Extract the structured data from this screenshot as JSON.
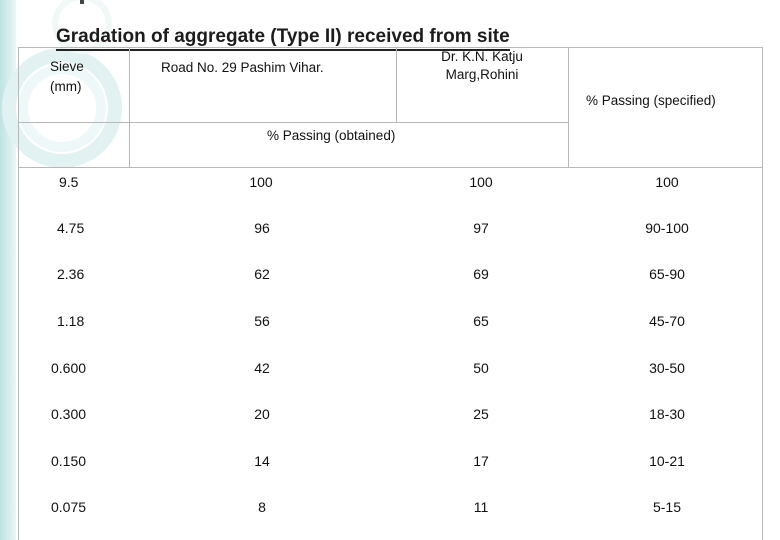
{
  "title": "Gradation of aggregate (Type II) received from site",
  "header": {
    "sieve": "Sieve",
    "mm": "(mm)",
    "road29": "Road No. 29 Pashim Vihar.",
    "katju_line1": "Dr. K.N. Katju",
    "katju_line2": "Marg,Rohini",
    "specified": "% Passing (specified)",
    "obtained": "% Passing (obtained)"
  },
  "rows": [
    {
      "sieve": "9.5",
      "road29": "100",
      "katju": "100",
      "specified": "100"
    },
    {
      "sieve": "4.75",
      "road29": "96",
      "katju": "97",
      "specified": "90-100"
    },
    {
      "sieve": "2.36",
      "road29": "62",
      "katju": "69",
      "specified": "65-90"
    },
    {
      "sieve": "1.18",
      "road29": "56",
      "katju": "65",
      "specified": "45-70"
    },
    {
      "sieve": "0.600",
      "road29": "42",
      "katju": "50",
      "specified": "30-50"
    },
    {
      "sieve": "0.300",
      "road29": "20",
      "katju": "25",
      "specified": "18-30"
    },
    {
      "sieve": "0.150",
      "road29": "14",
      "katju": "17",
      "specified": "10-21"
    },
    {
      "sieve": "0.075",
      "road29": "8",
      "katju": "11",
      "specified": "5-15"
    }
  ]
}
